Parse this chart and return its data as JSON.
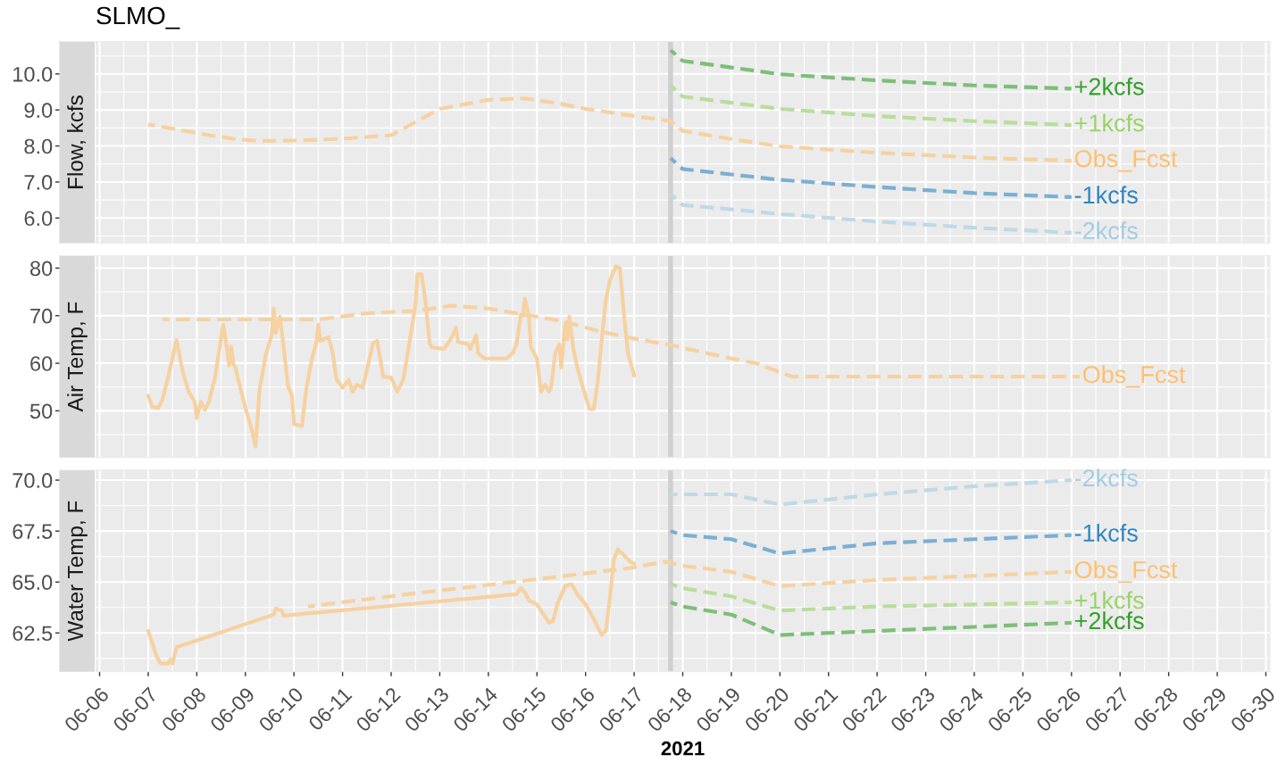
{
  "chart_data": [
    {
      "type": "line",
      "title": "SLMO_",
      "ylabel": "Flow, kcfs",
      "grid": true,
      "tick_labels": "y",
      "xlim": [
        "2021-06-05T22:00",
        "2021-06-30T02:00"
      ],
      "xticks": [
        {
          "value": "2021-06-06",
          "label": null
        },
        {
          "value": "2021-06-07",
          "label": null
        },
        {
          "value": "2021-06-08",
          "label": null
        },
        {
          "value": "2021-06-09",
          "label": null
        },
        {
          "value": "2021-06-10",
          "label": null
        },
        {
          "value": "2021-06-11",
          "label": null
        },
        {
          "value": "2021-06-12",
          "label": null
        },
        {
          "value": "2021-06-13",
          "label": null
        },
        {
          "value": "2021-06-14",
          "label": null
        },
        {
          "value": "2021-06-15",
          "label": null
        },
        {
          "value": "2021-06-16",
          "label": null
        },
        {
          "value": "2021-06-17",
          "label": null
        },
        {
          "value": "2021-06-18",
          "label": null
        },
        {
          "value": "2021-06-19",
          "label": null
        },
        {
          "value": "2021-06-20",
          "label": null
        },
        {
          "value": "2021-06-21",
          "label": null
        },
        {
          "value": "2021-06-22",
          "label": null
        },
        {
          "value": "2021-06-23",
          "label": null
        },
        {
          "value": "2021-06-24",
          "label": null
        },
        {
          "value": "2021-06-25",
          "label": null
        },
        {
          "value": "2021-06-26",
          "label": null
        },
        {
          "value": "2021-06-27",
          "label": null
        },
        {
          "value": "2021-06-28",
          "label": null
        },
        {
          "value": "2021-06-29",
          "label": null
        },
        {
          "value": "2021-06-30",
          "label": null
        }
      ],
      "ylim": [
        5.3,
        10.9
      ],
      "yticks": [
        {
          "value": 6,
          "label": "6.0"
        },
        {
          "value": 7,
          "label": "7.0"
        },
        {
          "value": 8,
          "label": "8.0"
        },
        {
          "value": 9,
          "label": "9.0"
        },
        {
          "value": 10,
          "label": "10.0"
        }
      ],
      "ref_lines": [
        {
          "axis": "x",
          "value": "2021-06-17T18:00",
          "color": "#d0d0d0"
        }
      ],
      "series": [
        {
          "name": "Obs_Fcst",
          "color": "#f6d1a1",
          "line_style": "dashed",
          "x": [
            "2021-06-07T00:00",
            "2021-06-07T12:00",
            "2021-06-08T06:00",
            "2021-06-08T18:00",
            "2021-06-09T06:00",
            "2021-06-10T00:00",
            "2021-06-11T00:00",
            "2021-06-11T12:00",
            "2021-06-12T00:00",
            "2021-06-12T12:00",
            "2021-06-13T00:00",
            "2021-06-14T00:00",
            "2021-06-14T18:00",
            "2021-06-15T12:00",
            "2021-06-16T00:00",
            "2021-06-17T00:00",
            "2021-06-17T18:00",
            "2021-06-18T00:00",
            "2021-06-19T00:00",
            "2021-06-20T00:00",
            "2021-06-22T00:00",
            "2021-06-24T00:00",
            "2021-06-26T00:00"
          ],
          "values": [
            8.6,
            8.48,
            8.3,
            8.2,
            8.14,
            8.15,
            8.2,
            8.25,
            8.3,
            8.66,
            9.03,
            9.28,
            9.32,
            9.17,
            9.03,
            8.83,
            8.69,
            8.42,
            8.19,
            7.99,
            7.81,
            7.68,
            7.59
          ]
        },
        {
          "name": "+2kcfs",
          "color": "#7dbe78",
          "line_style": "dashed",
          "x": [
            "2021-06-17T18:00",
            "2021-06-18T00:00",
            "2021-06-19T00:00",
            "2021-06-20T00:00",
            "2021-06-22T00:00",
            "2021-06-24T00:00",
            "2021-06-26T00:00"
          ],
          "values": [
            10.66,
            10.36,
            10.18,
            9.99,
            9.82,
            9.68,
            9.59
          ]
        },
        {
          "name": "+1kcfs",
          "color": "#b9dd9c",
          "line_style": "dashed",
          "x": [
            "2021-06-17T18:00",
            "2021-06-18T00:00",
            "2021-06-19T00:00",
            "2021-06-20T00:00",
            "2021-06-22T00:00",
            "2021-06-24T00:00",
            "2021-06-26T00:00"
          ],
          "values": [
            9.68,
            9.37,
            9.2,
            9.03,
            8.83,
            8.69,
            8.58
          ]
        },
        {
          "name": "-1kcfs",
          "color": "#7bafd2",
          "line_style": "dashed",
          "x": [
            "2021-06-17T18:00",
            "2021-06-18T00:00",
            "2021-06-19T00:00",
            "2021-06-20T00:00",
            "2021-06-22T00:00",
            "2021-06-24T00:00",
            "2021-06-26T00:00"
          ],
          "values": [
            7.66,
            7.36,
            7.21,
            7.06,
            6.86,
            6.69,
            6.58
          ]
        },
        {
          "name": "-2kcfs",
          "color": "#bfd9e6",
          "line_style": "dashed",
          "x": [
            "2021-06-17T18:00",
            "2021-06-18T00:00",
            "2021-06-19T00:00",
            "2021-06-20T00:00",
            "2021-06-22T00:00",
            "2021-06-24T00:00",
            "2021-06-26T00:00"
          ],
          "values": [
            6.66,
            6.36,
            6.24,
            6.11,
            5.9,
            5.73,
            5.59
          ]
        }
      ]
    },
    {
      "type": "line",
      "ylabel": "Air Temp, F",
      "grid": true,
      "tick_labels": "y",
      "xlim": [
        "2021-06-05T22:00",
        "2021-06-30T02:00"
      ],
      "xticks": [
        {
          "value": "2021-06-06",
          "label": null
        },
        {
          "value": "2021-06-07",
          "label": null
        },
        {
          "value": "2021-06-08",
          "label": null
        },
        {
          "value": "2021-06-09",
          "label": null
        },
        {
          "value": "2021-06-10",
          "label": null
        },
        {
          "value": "2021-06-11",
          "label": null
        },
        {
          "value": "2021-06-12",
          "label": null
        },
        {
          "value": "2021-06-13",
          "label": null
        },
        {
          "value": "2021-06-14",
          "label": null
        },
        {
          "value": "2021-06-15",
          "label": null
        },
        {
          "value": "2021-06-16",
          "label": null
        },
        {
          "value": "2021-06-17",
          "label": null
        },
        {
          "value": "2021-06-18",
          "label": null
        },
        {
          "value": "2021-06-19",
          "label": null
        },
        {
          "value": "2021-06-20",
          "label": null
        },
        {
          "value": "2021-06-21",
          "label": null
        },
        {
          "value": "2021-06-22",
          "label": null
        },
        {
          "value": "2021-06-23",
          "label": null
        },
        {
          "value": "2021-06-24",
          "label": null
        },
        {
          "value": "2021-06-25",
          "label": null
        },
        {
          "value": "2021-06-26",
          "label": null
        },
        {
          "value": "2021-06-27",
          "label": null
        },
        {
          "value": "2021-06-28",
          "label": null
        },
        {
          "value": "2021-06-29",
          "label": null
        },
        {
          "value": "2021-06-30",
          "label": null
        }
      ],
      "ylim": [
        40.2,
        82.6
      ],
      "yticks": [
        50,
        60,
        70,
        80
      ],
      "ref_lines": [
        {
          "axis": "x",
          "value": "2021-06-17T18:00",
          "color": "#d0d0d0"
        }
      ],
      "series": [
        {
          "color": "#f6d1a1",
          "line_style": "solid",
          "x": [
            "2021-06-07T00:00",
            "2021-06-07T02:00",
            "2021-06-07T05:00",
            "2021-06-07T07:00",
            "2021-06-07T10:00",
            "2021-06-07T14:00",
            "2021-06-07T17:00",
            "2021-06-07T20:00",
            "2021-06-07T23:00",
            "2021-06-08T00:00",
            "2021-06-08T02:00",
            "2021-06-08T04:00",
            "2021-06-08T06:00",
            "2021-06-08T09:00",
            "2021-06-08T13:00",
            "2021-06-08T15:00",
            "2021-06-08T16:00",
            "2021-06-08T17:00",
            "2021-06-08T18:00",
            "2021-06-08T19:00",
            "2021-06-08T21:00",
            "2021-06-09T00:00",
            "2021-06-09T03:00",
            "2021-06-09T05:00",
            "2021-06-09T07:00",
            "2021-06-09T10:00",
            "2021-06-09T13:00",
            "2021-06-09T14:00",
            "2021-06-09T15:00",
            "2021-06-09T17:00",
            "2021-06-09T19:00",
            "2021-06-09T21:00",
            "2021-06-09T23:00",
            "2021-06-10T00:00",
            "2021-06-10T04:00",
            "2021-06-10T06:00",
            "2021-06-10T09:00",
            "2021-06-10T11:00",
            "2021-06-10T12:00",
            "2021-06-10T13:00",
            "2021-06-10T17:00",
            "2021-06-10T19:00",
            "2021-06-10T21:00",
            "2021-06-11T00:00",
            "2021-06-11T03:00",
            "2021-06-11T05:00",
            "2021-06-11T07:00",
            "2021-06-11T10:00",
            "2021-06-11T13:00",
            "2021-06-11T15:00",
            "2021-06-11T17:00",
            "2021-06-11T19:00",
            "2021-06-11T20:00",
            "2021-06-12T00:00",
            "2021-06-12T03:00",
            "2021-06-12T06:00",
            "2021-06-12T09:00",
            "2021-06-12T12:00",
            "2021-06-12T13:00",
            "2021-06-12T15:00",
            "2021-06-12T17:00",
            "2021-06-12T19:00",
            "2021-06-12T20:00",
            "2021-06-13T02:00",
            "2021-06-13T04:00",
            "2021-06-13T06:00",
            "2021-06-13T08:00",
            "2021-06-13T09:00",
            "2021-06-13T14:00",
            "2021-06-13T15:00",
            "2021-06-13T18:00",
            "2021-06-13T19:00",
            "2021-06-13T22:00",
            "2021-06-14T09:00",
            "2021-06-14T12:00",
            "2021-06-14T14:00",
            "2021-06-14T16:00",
            "2021-06-14T17:00",
            "2021-06-14T18:00",
            "2021-06-14T20:00",
            "2021-06-14T21:00",
            "2021-06-15T00:00",
            "2021-06-15T02:00",
            "2021-06-15T04:00",
            "2021-06-15T06:00",
            "2021-06-15T07:00",
            "2021-06-15T09:00",
            "2021-06-15T11:00",
            "2021-06-15T12:00",
            "2021-06-15T14:00",
            "2021-06-15T15:00",
            "2021-06-15T16:00",
            "2021-06-15T18:00",
            "2021-06-15T20:00",
            "2021-06-15T22:00",
            "2021-06-16T00:00",
            "2021-06-16T02:00",
            "2021-06-16T04:00",
            "2021-06-16T06:00",
            "2021-06-16T08:00",
            "2021-06-16T10:00",
            "2021-06-16T12:00",
            "2021-06-16T15:00",
            "2021-06-16T17:00",
            "2021-06-16T19:00",
            "2021-06-16T21:00",
            "2021-06-17T00:00"
          ],
          "values": [
            53.2,
            50.8,
            50.6,
            52.3,
            57.4,
            64.9,
            58.3,
            54.0,
            51.9,
            48.5,
            51.9,
            50.2,
            51.9,
            57.0,
            68.1,
            63.0,
            59.5,
            63.5,
            60.0,
            59.1,
            55.7,
            50.6,
            46.3,
            42.5,
            54.4,
            61.7,
            65.9,
            71.5,
            66.4,
            69.8,
            63.0,
            55.3,
            53.2,
            47.2,
            46.8,
            54.4,
            61.2,
            64.2,
            68.1,
            64.7,
            65.5,
            62.5,
            56.6,
            54.9,
            56.5,
            54.0,
            55.5,
            54.9,
            60.4,
            64.2,
            64.7,
            60.0,
            57.2,
            57.0,
            54.0,
            56.6,
            64.2,
            72.3,
            78.7,
            78.7,
            72.8,
            64.2,
            63.4,
            63.0,
            64.1,
            65.5,
            67.5,
            64.5,
            64.0,
            63.0,
            65.9,
            62.1,
            61.0,
            61.0,
            62.1,
            64.2,
            70.2,
            70.0,
            73.6,
            70.0,
            63.4,
            61.0,
            54.0,
            55.5,
            54.0,
            55.0,
            62.0,
            64.0,
            59.1,
            68.5,
            65.0,
            69.8,
            63.0,
            59.0,
            56.0,
            53.0,
            50.4,
            50.4,
            56.0,
            65.0,
            73.2,
            77.4,
            80.4,
            80.0,
            70.0,
            62.0,
            57.4
          ]
        },
        {
          "name": "Obs_Fcst",
          "color": "#f6d1a1",
          "line_style": "dashed",
          "x": [
            "2021-06-07T07:00",
            "2021-06-10T12:00",
            "2021-06-11T12:00",
            "2021-06-12T12:00",
            "2021-06-13T06:00",
            "2021-06-14T00:00",
            "2021-06-14T18:00",
            "2021-06-15T12:00",
            "2021-06-16T06:00",
            "2021-06-17T00:00",
            "2021-06-17T18:00",
            "2021-06-19T00:00",
            "2021-06-19T12:00",
            "2021-06-20T06:00",
            "2021-06-26T04:00"
          ],
          "values": [
            69.2,
            69.2,
            70.5,
            71.0,
            72.1,
            71.5,
            70.2,
            68.9,
            66.8,
            65.2,
            63.8,
            61.0,
            60.0,
            57.2,
            57.2
          ]
        }
      ]
    },
    {
      "type": "line",
      "ylabel": "Water Temp, F",
      "xlabel": "2021",
      "grid": true,
      "xlim": [
        "2021-06-05T22:00",
        "2021-06-30T02:00"
      ],
      "xticks": [
        {
          "value": "2021-06-06",
          "label": "06-06"
        },
        {
          "value": "2021-06-07",
          "label": "06-07"
        },
        {
          "value": "2021-06-08",
          "label": "06-08"
        },
        {
          "value": "2021-06-09",
          "label": "06-09"
        },
        {
          "value": "2021-06-10",
          "label": "06-10"
        },
        {
          "value": "2021-06-11",
          "label": "06-11"
        },
        {
          "value": "2021-06-12",
          "label": "06-12"
        },
        {
          "value": "2021-06-13",
          "label": "06-13"
        },
        {
          "value": "2021-06-14",
          "label": "06-14"
        },
        {
          "value": "2021-06-15",
          "label": "06-15"
        },
        {
          "value": "2021-06-16",
          "label": "06-16"
        },
        {
          "value": "2021-06-17",
          "label": "06-17"
        },
        {
          "value": "2021-06-18",
          "label": "06-18"
        },
        {
          "value": "2021-06-19",
          "label": "06-19"
        },
        {
          "value": "2021-06-20",
          "label": "06-20"
        },
        {
          "value": "2021-06-21",
          "label": "06-21"
        },
        {
          "value": "2021-06-22",
          "label": "06-22"
        },
        {
          "value": "2021-06-23",
          "label": "06-23"
        },
        {
          "value": "2021-06-24",
          "label": "06-24"
        },
        {
          "value": "2021-06-25",
          "label": "06-25"
        },
        {
          "value": "2021-06-26",
          "label": "06-26"
        },
        {
          "value": "2021-06-27",
          "label": "06-27"
        },
        {
          "value": "2021-06-28",
          "label": "06-28"
        },
        {
          "value": "2021-06-29",
          "label": "06-29"
        },
        {
          "value": "2021-06-30",
          "label": "06-30"
        }
      ],
      "ylim": [
        60.6,
        70.5
      ],
      "yticks": [
        62.5,
        {
          "value": 65,
          "label": "65.0"
        },
        67.5,
        {
          "value": 70,
          "label": "70.0"
        }
      ],
      "ref_lines": [
        {
          "axis": "x",
          "value": "2021-06-17T18:00",
          "color": "#d0d0d0"
        }
      ],
      "series": [
        {
          "color": "#f6d1a1",
          "line_style": "solid",
          "x": [
            "2021-06-07T00:00",
            "2021-06-07T02:00",
            "2021-06-07T04:00",
            "2021-06-07T06:00",
            "2021-06-07T10:00",
            "2021-06-07T11:00",
            "2021-06-07T12:00",
            "2021-06-07T13:00",
            "2021-06-07T14:00",
            "2021-06-09T14:00",
            "2021-06-09T15:00",
            "2021-06-09T18:00",
            "2021-06-09T19:00",
            "2021-06-14T14:00",
            "2021-06-14T16:00",
            "2021-06-14T18:00",
            "2021-06-14T20:00",
            "2021-06-15T00:00",
            "2021-06-15T06:00",
            "2021-06-15T08:00",
            "2021-06-15T10:00",
            "2021-06-15T14:00",
            "2021-06-15T17:00",
            "2021-06-15T20:00",
            "2021-06-16T00:00",
            "2021-06-16T04:00",
            "2021-06-16T08:00",
            "2021-06-16T10:00",
            "2021-06-16T12:00",
            "2021-06-16T14:00",
            "2021-06-16T16:00",
            "2021-06-16T19:00",
            "2021-06-16T22:00",
            "2021-06-17T00:00"
          ],
          "values": [
            62.6,
            62.0,
            61.4,
            61.0,
            61.0,
            61.2,
            61.0,
            61.4,
            61.8,
            63.4,
            63.7,
            63.6,
            63.35,
            64.4,
            64.7,
            64.5,
            64.1,
            63.9,
            63.0,
            63.1,
            63.9,
            64.8,
            64.9,
            64.4,
            63.9,
            63.2,
            62.4,
            62.6,
            64.2,
            66.1,
            66.6,
            66.3,
            66.0,
            65.9
          ]
        },
        {
          "name": "Obs_Fcst",
          "color": "#f6d1a1",
          "line_style": "dashed",
          "x": [
            "2021-06-10T07:00",
            "2021-06-12T08:00",
            "2021-06-14T21:00",
            "2021-06-16T23:00",
            "2021-06-17T15:00",
            "2021-06-18T00:00",
            "2021-06-19T00:00",
            "2021-06-20T00:00",
            "2021-06-22T00:00",
            "2021-06-24T00:00",
            "2021-06-26T00:00"
          ],
          "values": [
            63.8,
            64.4,
            65.1,
            65.7,
            66.0,
            65.8,
            65.5,
            64.8,
            65.1,
            65.3,
            65.5
          ]
        },
        {
          "name": "-2kcfs",
          "color": "#bfd9e6",
          "line_style": "dashed",
          "x": [
            "2021-06-17T18:00",
            "2021-06-18T00:00",
            "2021-06-19T00:00",
            "2021-06-20T00:00",
            "2021-06-22T00:00",
            "2021-06-24T00:00",
            "2021-06-26T00:00"
          ],
          "values": [
            69.3,
            69.3,
            69.3,
            68.8,
            69.3,
            69.7,
            70.0
          ]
        },
        {
          "name": "-1kcfs",
          "color": "#7bafd2",
          "line_style": "dashed",
          "x": [
            "2021-06-17T18:00",
            "2021-06-18T00:00",
            "2021-06-19T00:00",
            "2021-06-20T00:00",
            "2021-06-22T00:00",
            "2021-06-24T00:00",
            "2021-06-26T00:00"
          ],
          "values": [
            67.5,
            67.3,
            67.1,
            66.4,
            66.9,
            67.1,
            67.3
          ]
        },
        {
          "name": "+1kcfs",
          "color": "#b9dd9c",
          "line_style": "dashed",
          "x": [
            "2021-06-17T18:00",
            "2021-06-18T00:00",
            "2021-06-19T00:00",
            "2021-06-20T00:00",
            "2021-06-22T00:00",
            "2021-06-24T00:00",
            "2021-06-26T00:00"
          ],
          "values": [
            64.9,
            64.7,
            64.3,
            63.6,
            63.8,
            63.9,
            64.0
          ]
        },
        {
          "name": "+2kcfs",
          "color": "#7dbe78",
          "line_style": "dashed",
          "x": [
            "2021-06-17T18:00",
            "2021-06-18T00:00",
            "2021-06-19T00:00",
            "2021-06-20T00:00",
            "2021-06-22T00:00",
            "2021-06-24T00:00",
            "2021-06-26T00:00"
          ],
          "values": [
            64.0,
            63.8,
            63.4,
            62.4,
            62.6,
            62.8,
            63.0
          ]
        }
      ]
    }
  ]
}
